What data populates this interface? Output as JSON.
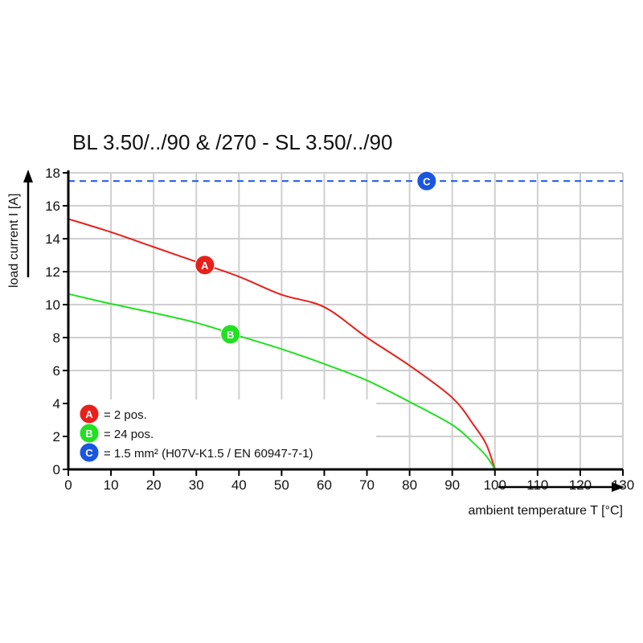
{
  "chart_data": {
    "type": "line",
    "title": "BL 3.50/../90 & /270 - SL 3.50/../90",
    "xlabel": "ambient temperature T [°C]",
    "ylabel": "load current I [A]",
    "xlim": [
      0,
      130
    ],
    "ylim": [
      0,
      18
    ],
    "xticks": [
      "0",
      "10",
      "20",
      "30",
      "40",
      "50",
      "60",
      "70",
      "80",
      "90",
      "100",
      "110",
      "120",
      "130"
    ],
    "yticks": [
      "0",
      "2",
      "4",
      "6",
      "8",
      "10",
      "12",
      "14",
      "16",
      "18"
    ],
    "grid": true,
    "legend_placement": "bottom-left",
    "series": [
      {
        "marker": "A",
        "name": "= 2 pos.",
        "color": "#e8201c",
        "x": [
          0,
          10,
          20,
          30,
          40,
          50,
          60,
          70,
          80,
          90,
          95,
          98,
          100
        ],
        "y": [
          15.2,
          14.4,
          13.5,
          12.6,
          11.7,
          10.6,
          9.85,
          8.0,
          6.3,
          4.35,
          2.7,
          1.5,
          0
        ]
      },
      {
        "marker": "B",
        "name": "= 24 pos.",
        "color": "#22e022",
        "x": [
          0,
          10,
          20,
          30,
          40,
          50,
          60,
          70,
          80,
          90,
          95,
          98,
          100
        ],
        "y": [
          10.65,
          10.05,
          9.5,
          8.9,
          8.1,
          7.3,
          6.4,
          5.4,
          4.1,
          2.7,
          1.6,
          0.8,
          0
        ]
      },
      {
        "marker": "C",
        "name": "= 1.5 mm² (H07V-K1.5 / EN 60947-7-1)",
        "color": "#1a56e0",
        "dashed": true,
        "x": [
          0,
          130
        ],
        "y": [
          17.5,
          17.5
        ]
      }
    ],
    "marker_positions": [
      {
        "marker": "A",
        "x": 32,
        "y": 12.4
      },
      {
        "marker": "B",
        "x": 38,
        "y": 8.2
      },
      {
        "marker": "C",
        "x": 84,
        "y": 17.5
      }
    ]
  }
}
